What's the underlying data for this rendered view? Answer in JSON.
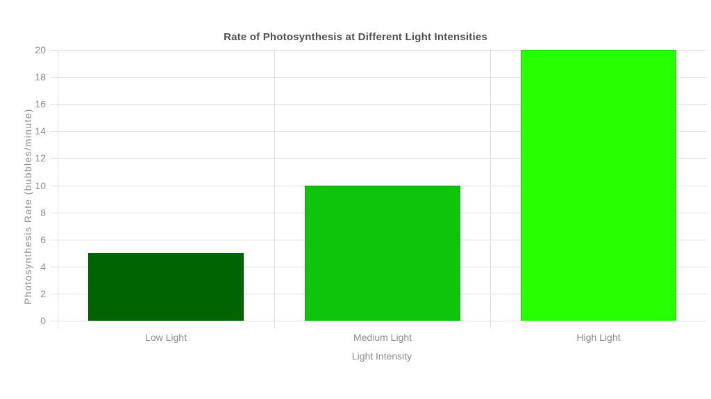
{
  "chart_data": {
    "type": "bar",
    "title": "Rate of Photosynthesis at Different Light Intensities",
    "xlabel": "Light Intensity",
    "ylabel": "Photosynthesis Rate (bubbles/minute)",
    "categories": [
      "Low Light",
      "Medium Light",
      "High Light"
    ],
    "values": [
      5,
      10,
      20
    ],
    "bar_colors": [
      "#006400",
      "#0fc40b",
      "#28ff00"
    ],
    "yticks": [
      0,
      2,
      4,
      6,
      8,
      10,
      12,
      14,
      16,
      18,
      20
    ],
    "ylim": [
      0,
      20
    ],
    "grid": true,
    "legend_position": "none",
    "colors": {
      "background": "#ffffff",
      "gridline": "#dedede",
      "tick_label": "#8b8b8b",
      "axis_title": "#8b8b8b",
      "chart_title": "#4f4f4f"
    }
  }
}
